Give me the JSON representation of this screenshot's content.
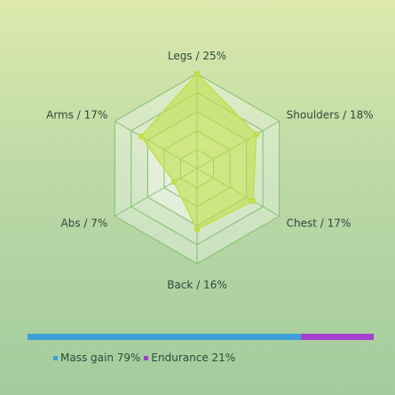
{
  "chart_data": {
    "type": "radar",
    "categories": [
      "Legs",
      "Shoulders",
      "Chest",
      "Back",
      "Abs",
      "Arms"
    ],
    "values": [
      25,
      18,
      17,
      16,
      7,
      17
    ],
    "axis_labels": [
      "Legs / 25%",
      "Shoulders / 18%",
      "Chest / 17%",
      "Back / 16%",
      "Abs / 7%",
      "Arms / 17%"
    ],
    "max": 25,
    "rings": 5,
    "grid": true,
    "series_color": "#bfe04a",
    "grid_color": "#7fc06e",
    "split": [
      {
        "name": "Mass gain",
        "value": 79,
        "label": "Mass gain 79%",
        "color": "#3ea0d8"
      },
      {
        "name": "Endurance",
        "value": 21,
        "label": "Endurance 21%",
        "color": "#a640d0"
      }
    ]
  }
}
